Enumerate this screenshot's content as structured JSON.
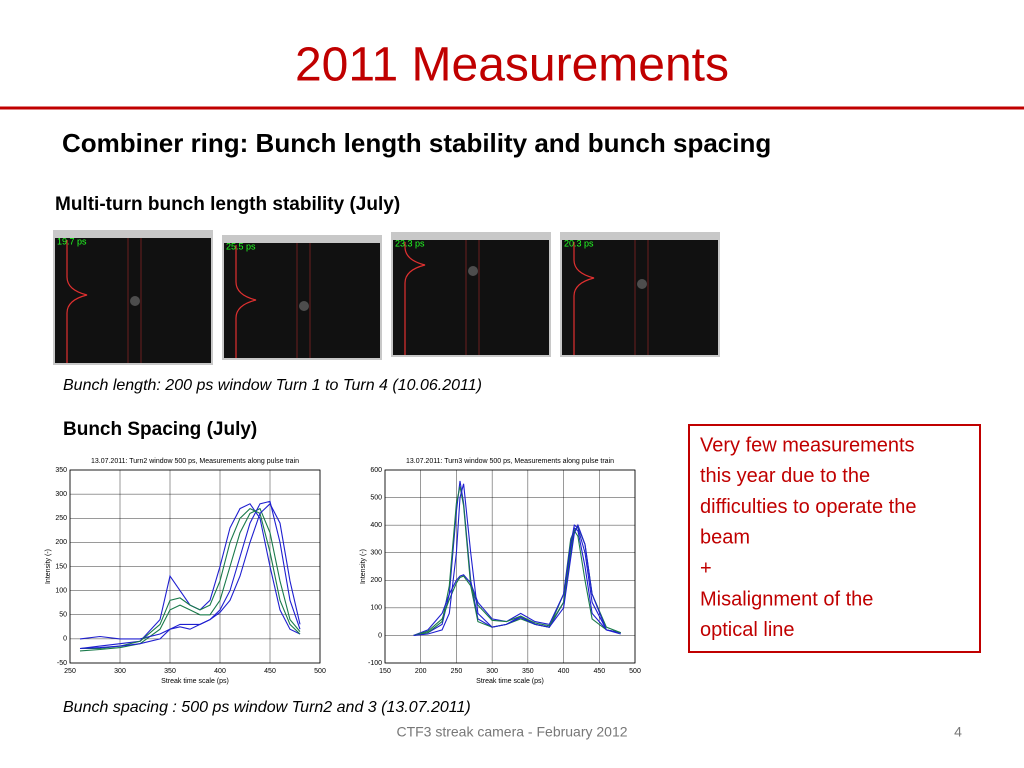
{
  "title": "2011 Measurements",
  "subtitle": "Combiner ring: Bunch length stability and bunch spacing",
  "section1": {
    "heading": "Multi-turn bunch length stability (July)",
    "images": [
      {
        "label": "19.7 ps"
      },
      {
        "label": "25.5 ps"
      },
      {
        "label": "23.3 ps"
      },
      {
        "label": "20.3 ps"
      }
    ],
    "caption": "Bunch length: 200 ps window Turn 1 to Turn 4 (10.06.2011)"
  },
  "section2": {
    "heading": "Bunch Spacing (July)",
    "caption": "Bunch spacing : 500 ps window Turn2 and 3 (13.07.2011)"
  },
  "note": {
    "lines": [
      "Very few measurements",
      "this year due to the",
      "difficulties to operate the",
      "beam",
      "+",
      "Misalignment of the",
      "optical line"
    ]
  },
  "footer": {
    "text": "CTF3 streak camera - February 2012",
    "page": "4"
  },
  "chart_data": [
    {
      "type": "line",
      "title": "13.07.2011: Turn2 window 500 ps, Measurements along pulse train",
      "x_label": "Streak time scale (ps)",
      "y_label": "Intensity (-)",
      "x": [
        260,
        280,
        300,
        320,
        340,
        350,
        360,
        370,
        380,
        390,
        400,
        410,
        420,
        430,
        440,
        450,
        460,
        470,
        480
      ],
      "series": [
        {
          "color": "#1f1fd0",
          "values": [
            -20,
            -15,
            -10,
            -5,
            40,
            130,
            100,
            70,
            60,
            80,
            150,
            230,
            270,
            280,
            250,
            150,
            60,
            20,
            10
          ]
        },
        {
          "color": "#1a7a4a",
          "values": [
            -25,
            -22,
            -18,
            -10,
            20,
            60,
            70,
            60,
            50,
            50,
            80,
            150,
            220,
            260,
            270,
            220,
            120,
            40,
            15
          ]
        },
        {
          "color": "#1f1fd0",
          "values": [
            0,
            5,
            0,
            0,
            10,
            20,
            25,
            20,
            30,
            40,
            60,
            100,
            170,
            240,
            280,
            285,
            200,
            80,
            20
          ]
        },
        {
          "color": "#1a7a4a",
          "values": [
            -20,
            -20,
            -15,
            -5,
            30,
            80,
            85,
            70,
            60,
            70,
            120,
            200,
            250,
            270,
            260,
            180,
            80,
            30,
            10
          ]
        },
        {
          "color": "#1f1fd0",
          "values": [
            -20,
            -18,
            -15,
            -10,
            0,
            20,
            30,
            30,
            30,
            40,
            55,
            80,
            130,
            200,
            260,
            280,
            240,
            120,
            30
          ]
        }
      ],
      "xlim": [
        250,
        500
      ],
      "xticks": [
        250,
        300,
        350,
        400,
        450,
        500
      ],
      "ylim": [
        -50,
        350
      ],
      "yticks": [
        -50,
        0,
        50,
        100,
        150,
        200,
        250,
        300,
        350
      ],
      "grid": true
    },
    {
      "type": "line",
      "title": "13.07.2011: Turn3 window 500 ps, Measurements along pulse train",
      "x_label": "Streak time scale (ps)",
      "y_label": "Intensity (-)",
      "x": [
        190,
        210,
        230,
        240,
        250,
        255,
        260,
        270,
        280,
        300,
        320,
        340,
        360,
        380,
        400,
        410,
        415,
        420,
        430,
        440,
        460,
        480
      ],
      "series": [
        {
          "color": "#1f1fd0",
          "values": [
            0,
            10,
            40,
            150,
            450,
            560,
            480,
            200,
            60,
            30,
            40,
            70,
            40,
            30,
            120,
            320,
            390,
            380,
            250,
            80,
            20,
            10
          ]
        },
        {
          "color": "#1a7a4a",
          "values": [
            0,
            10,
            50,
            180,
            480,
            540,
            470,
            180,
            50,
            30,
            40,
            60,
            40,
            30,
            150,
            350,
            380,
            360,
            200,
            60,
            20,
            10
          ]
        },
        {
          "color": "#1f1fd0",
          "values": [
            0,
            20,
            80,
            150,
            200,
            215,
            220,
            190,
            120,
            60,
            50,
            80,
            50,
            40,
            150,
            330,
            400,
            390,
            300,
            120,
            20,
            10
          ]
        },
        {
          "color": "#1a7a4a",
          "values": [
            0,
            15,
            60,
            130,
            190,
            210,
            215,
            180,
            110,
            55,
            50,
            70,
            45,
            35,
            120,
            300,
            380,
            395,
            330,
            150,
            30,
            10
          ]
        },
        {
          "color": "#1f1fd0",
          "values": [
            0,
            5,
            20,
            80,
            300,
            500,
            550,
            300,
            80,
            30,
            40,
            65,
            40,
            30,
            100,
            280,
            370,
            400,
            330,
            150,
            20,
            5
          ]
        }
      ],
      "xlim": [
        150,
        500
      ],
      "xticks": [
        150,
        200,
        250,
        300,
        350,
        400,
        450,
        500
      ],
      "ylim": [
        -100,
        600
      ],
      "yticks": [
        -100,
        0,
        100,
        200,
        300,
        400,
        500,
        600
      ],
      "grid": true
    }
  ]
}
